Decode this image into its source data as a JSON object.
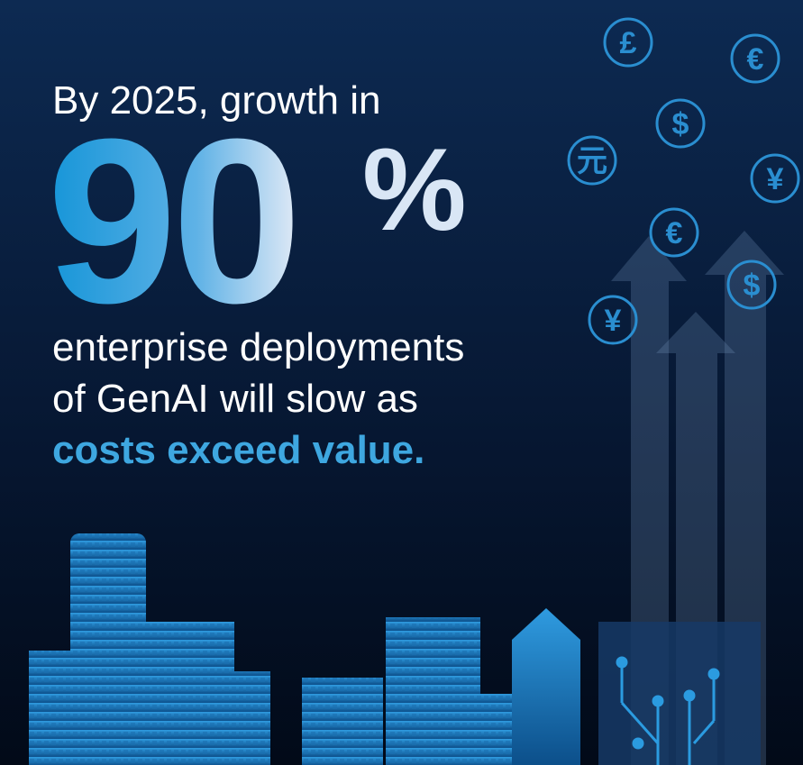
{
  "headline": {
    "lead": "By 2025, growth in",
    "figure": "90",
    "figure_unit": "%",
    "lines": [
      "enterprise deployments",
      "of GenAI will slow as"
    ],
    "emphasis": "costs exceed value."
  },
  "currency_icons": [
    "£",
    "€",
    "$",
    "元",
    "¥",
    "€",
    "$",
    "¥"
  ]
}
